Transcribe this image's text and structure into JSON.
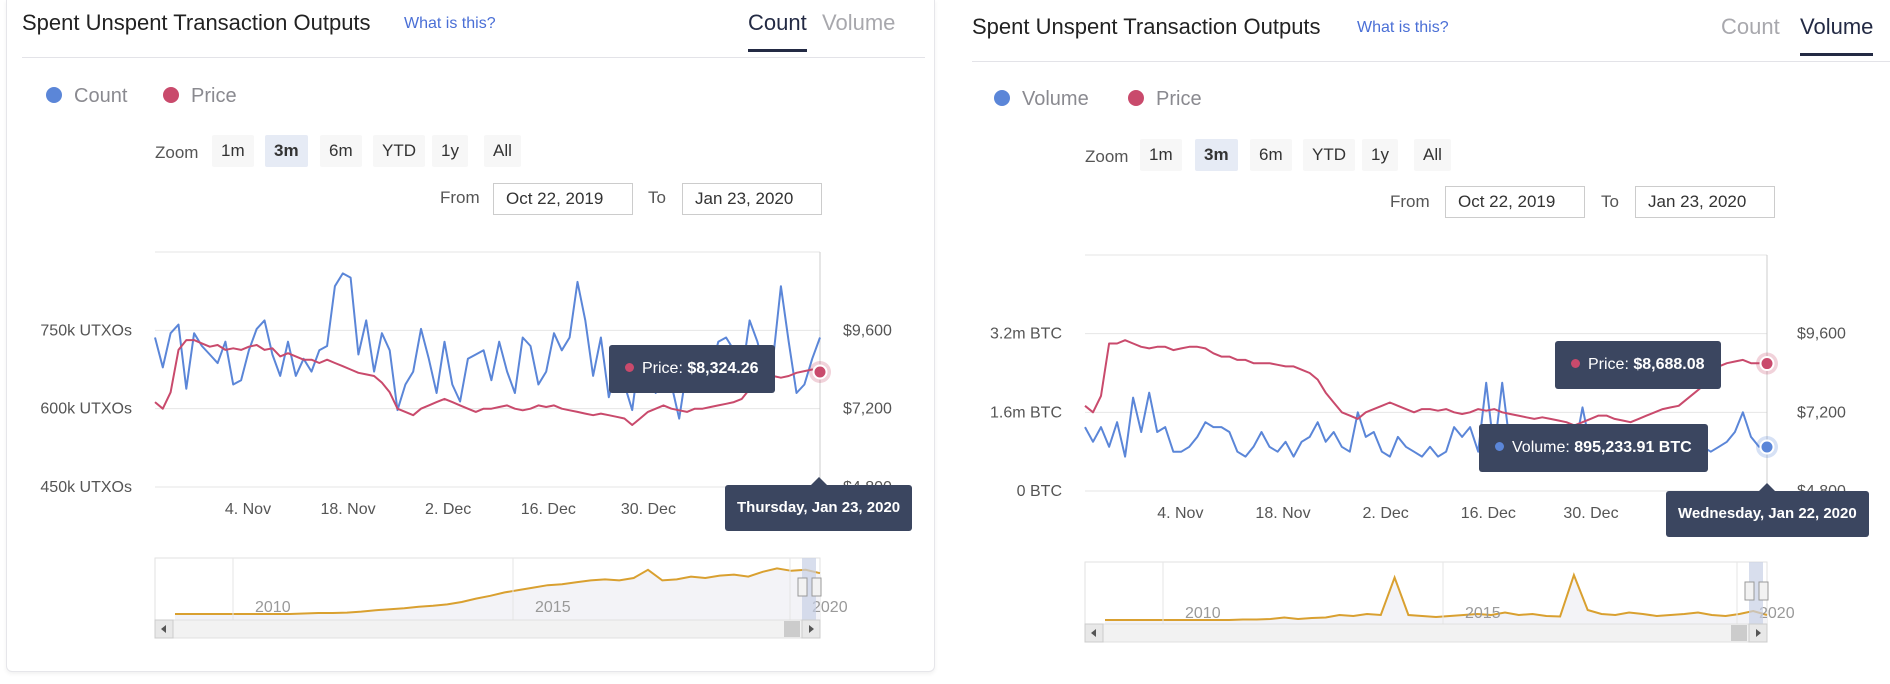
{
  "colors": {
    "count": "#5b86d8",
    "price": "#c94a6c",
    "nav": "#d9a030",
    "tooltip": "#3b4660",
    "active_tab": "#232a44",
    "link": "#4a6fd6"
  },
  "panels": [
    {
      "title": "Spent Unspent Transaction Outputs",
      "what_is": "What is this?",
      "tabs": [
        {
          "label": "Count",
          "active": true
        },
        {
          "label": "Volume",
          "active": false
        }
      ],
      "legend": [
        {
          "label": "Count",
          "color": "#5b86d8"
        },
        {
          "label": "Price",
          "color": "#c94a6c"
        }
      ],
      "zoom": {
        "label": "Zoom",
        "buttons": [
          "1m",
          "3m",
          "6m",
          "YTD",
          "1y",
          "All"
        ],
        "active": "3m"
      },
      "range": {
        "from_label": "From",
        "from": "Oct 22, 2019",
        "to_label": "To",
        "to": "Jan 23, 2020"
      },
      "tooltip_price": {
        "label": "Price:",
        "value": "$8,324.26"
      },
      "tooltip_date": "Thursday, Jan 23, 2020",
      "nav_labels": [
        "2010",
        "2015",
        "2020"
      ]
    },
    {
      "title": "Spent Unspent Transaction Outputs",
      "what_is": "What is this?",
      "tabs": [
        {
          "label": "Count",
          "active": false
        },
        {
          "label": "Volume",
          "active": true
        }
      ],
      "legend": [
        {
          "label": "Volume",
          "color": "#5b86d8"
        },
        {
          "label": "Price",
          "color": "#c94a6c"
        }
      ],
      "zoom": {
        "label": "Zoom",
        "buttons": [
          "1m",
          "3m",
          "6m",
          "YTD",
          "1y",
          "All"
        ],
        "active": "3m"
      },
      "range": {
        "from_label": "From",
        "from": "Oct 22, 2019",
        "to_label": "To",
        "to": "Jan 23, 2020"
      },
      "tooltip_price": {
        "label": "Price:",
        "value": "$8,688.08"
      },
      "tooltip_volume": {
        "label": "Volume:",
        "value": "895,233.91 BTC"
      },
      "tooltip_date": "Wednesday, Jan 22, 2020",
      "nav_labels": [
        "2010",
        "2015",
        "2020"
      ]
    }
  ],
  "chart_data": [
    {
      "type": "line",
      "title": "",
      "x_range": [
        "2019-10-22",
        "2020-01-23"
      ],
      "x_ticks": [
        "4. Nov",
        "18. Nov",
        "2. Dec",
        "16. Dec",
        "30. Dec"
      ],
      "y_left": {
        "ticks": [
          "450k UTXOs",
          "600k UTXOs",
          "750k UTXOs"
        ],
        "tick_values": [
          450000,
          600000,
          750000
        ],
        "range": [
          380000,
          930000
        ]
      },
      "y_right": {
        "ticks": [
          "$4,800",
          "$7,200",
          "$9,600"
        ],
        "tick_values": [
          4800,
          7200,
          9600
        ],
        "range": [
          4800,
          12000
        ]
      },
      "series": [
        {
          "name": "Count",
          "axis": "left",
          "color": "#5b86d8",
          "values": [
            730000,
            660000,
            740000,
            760000,
            610000,
            740000,
            710000,
            690000,
            670000,
            720000,
            620000,
            630000,
            700000,
            750000,
            770000,
            690000,
            640000,
            720000,
            640000,
            680000,
            650000,
            700000,
            710000,
            850000,
            880000,
            870000,
            690000,
            770000,
            650000,
            740000,
            700000,
            560000,
            620000,
            650000,
            750000,
            680000,
            600000,
            720000,
            620000,
            580000,
            680000,
            690000,
            700000,
            630000,
            720000,
            650000,
            600000,
            730000,
            710000,
            620000,
            650000,
            740000,
            700000,
            730000,
            860000,
            770000,
            640000,
            730000,
            590000,
            660000,
            620000,
            560000,
            700000,
            670000,
            600000,
            640000,
            620000,
            540000,
            660000,
            690000,
            610000,
            650000,
            720000,
            730000,
            700000,
            640000,
            770000,
            720000,
            650000,
            680000,
            850000,
            720000,
            600000,
            620000,
            680000,
            730000
          ]
        },
        {
          "name": "Price",
          "axis": "right",
          "color": "#c94a6c",
          "values": [
            7400,
            7200,
            7700,
            9000,
            9300,
            9300,
            9200,
            9100,
            9150,
            9000,
            9050,
            9000,
            9100,
            9150,
            9000,
            9050,
            8800,
            8900,
            8800,
            8700,
            8700,
            8600,
            8700,
            8600,
            8500,
            8400,
            8300,
            8250,
            8200,
            8000,
            7700,
            7200,
            7100,
            7000,
            7200,
            7300,
            7400,
            7500,
            7400,
            7300,
            7200,
            7100,
            7200,
            7200,
            7250,
            7300,
            7200,
            7150,
            7200,
            7300,
            7250,
            7300,
            7200,
            7150,
            7100,
            7050,
            7000,
            7050,
            7000,
            6950,
            6900,
            6700,
            6900,
            7100,
            7200,
            7300,
            7200,
            7150,
            7100,
            7200,
            7200,
            7250,
            7300,
            7350,
            7400,
            7500,
            7800,
            8000,
            8100,
            8200,
            8150,
            8200,
            8300,
            8350,
            8400,
            8324
          ]
        }
      ],
      "navigator": {
        "x_labels": [
          "2010",
          "2015",
          "2020"
        ],
        "values": [
          0,
          0,
          0,
          0,
          0,
          0,
          0,
          0,
          0,
          0.01,
          0.02,
          0.02,
          0.03,
          0.05,
          0.08,
          0.1,
          0.12,
          0.15,
          0.17,
          0.2,
          0.25,
          0.32,
          0.38,
          0.45,
          0.5,
          0.55,
          0.6,
          0.62,
          0.66,
          0.7,
          0.72,
          0.7,
          0.75,
          0.92,
          0.7,
          0.72,
          0.78,
          0.75,
          0.8,
          0.82,
          0.78,
          0.88,
          0.95,
          0.9,
          0.92,
          0.85
        ]
      }
    },
    {
      "type": "line",
      "title": "",
      "x_range": [
        "2019-10-22",
        "2020-01-23"
      ],
      "x_ticks": [
        "4. Nov",
        "18. Nov",
        "2. Dec",
        "16. Dec",
        "30. Dec"
      ],
      "y_left": {
        "ticks": [
          "0 BTC",
          "1.6m BTC",
          "3.2m BTC"
        ],
        "tick_values": [
          0,
          1600000,
          3200000
        ],
        "range": [
          0,
          4800000
        ]
      },
      "y_right": {
        "ticks": [
          "$4,800",
          "$7,200",
          "$9,600"
        ],
        "tick_values": [
          4800,
          7200,
          9600
        ],
        "range": [
          4800,
          12000
        ]
      },
      "series": [
        {
          "name": "Volume",
          "axis": "left",
          "color": "#5b86d8",
          "values": [
            1300000,
            1000000,
            1300000,
            900000,
            1400000,
            700000,
            1900000,
            1200000,
            2000000,
            1200000,
            1300000,
            800000,
            800000,
            900000,
            1100000,
            1400000,
            1300000,
            1300000,
            1200000,
            800000,
            700000,
            900000,
            1200000,
            900000,
            800000,
            1000000,
            700000,
            1000000,
            1100000,
            1400000,
            1000000,
            1200000,
            900000,
            800000,
            1600000,
            1100000,
            1200000,
            800000,
            700000,
            1100000,
            900000,
            800000,
            700000,
            900000,
            700000,
            800000,
            1300000,
            1100000,
            1300000,
            800000,
            2200000,
            800000,
            2200000,
            900000,
            1300000,
            1200000,
            800000,
            700000,
            700000,
            800000,
            900000,
            800000,
            1700000,
            900000,
            600000,
            1000000,
            900000,
            800000,
            1000000,
            900000,
            800000,
            700000,
            800000,
            900000,
            800000,
            900000,
            1100000,
            900000,
            800000,
            900000,
            1000000,
            1200000,
            1600000,
            1100000,
            900000,
            895234
          ]
        },
        {
          "name": "Price",
          "axis": "right",
          "color": "#c94a6c",
          "values": [
            7400,
            7200,
            7700,
            9300,
            9300,
            9400,
            9300,
            9200,
            9150,
            9200,
            9200,
            9100,
            9150,
            9200,
            9200,
            9150,
            9000,
            8900,
            8900,
            8800,
            8800,
            8700,
            8700,
            8700,
            8650,
            8600,
            8600,
            8500,
            8400,
            8200,
            7800,
            7500,
            7200,
            7100,
            7000,
            7200,
            7300,
            7400,
            7500,
            7400,
            7300,
            7200,
            7300,
            7300,
            7250,
            7300,
            7200,
            7150,
            7200,
            7300,
            7250,
            7300,
            7200,
            7150,
            7100,
            7050,
            7000,
            7050,
            7000,
            6950,
            6900,
            6800,
            6900,
            7000,
            7100,
            7100,
            7000,
            6950,
            6900,
            7000,
            7100,
            7200,
            7300,
            7350,
            7400,
            7600,
            7800,
            8000,
            8300,
            8600,
            8700,
            8750,
            8800,
            8700,
            8700,
            8688
          ]
        }
      ],
      "navigator": {
        "x_labels": [
          "2010",
          "2015",
          "2020"
        ],
        "values": [
          0,
          0,
          0,
          0,
          0,
          0,
          0,
          0,
          0,
          0,
          0.01,
          0.01,
          0.02,
          0.05,
          0.02,
          0.04,
          0.05,
          0.1,
          0.08,
          0.12,
          0.1,
          0.85,
          0.1,
          0.08,
          0.06,
          0.08,
          0.1,
          0.12,
          0.1,
          0.15,
          0.1,
          0.12,
          0.08,
          0.07,
          0.9,
          0.2,
          0.12,
          0.1,
          0.15,
          0.12,
          0.08,
          0.1,
          0.12,
          0.15,
          0.1,
          0.08,
          0.12,
          0.18,
          0.1
        ]
      }
    }
  ]
}
